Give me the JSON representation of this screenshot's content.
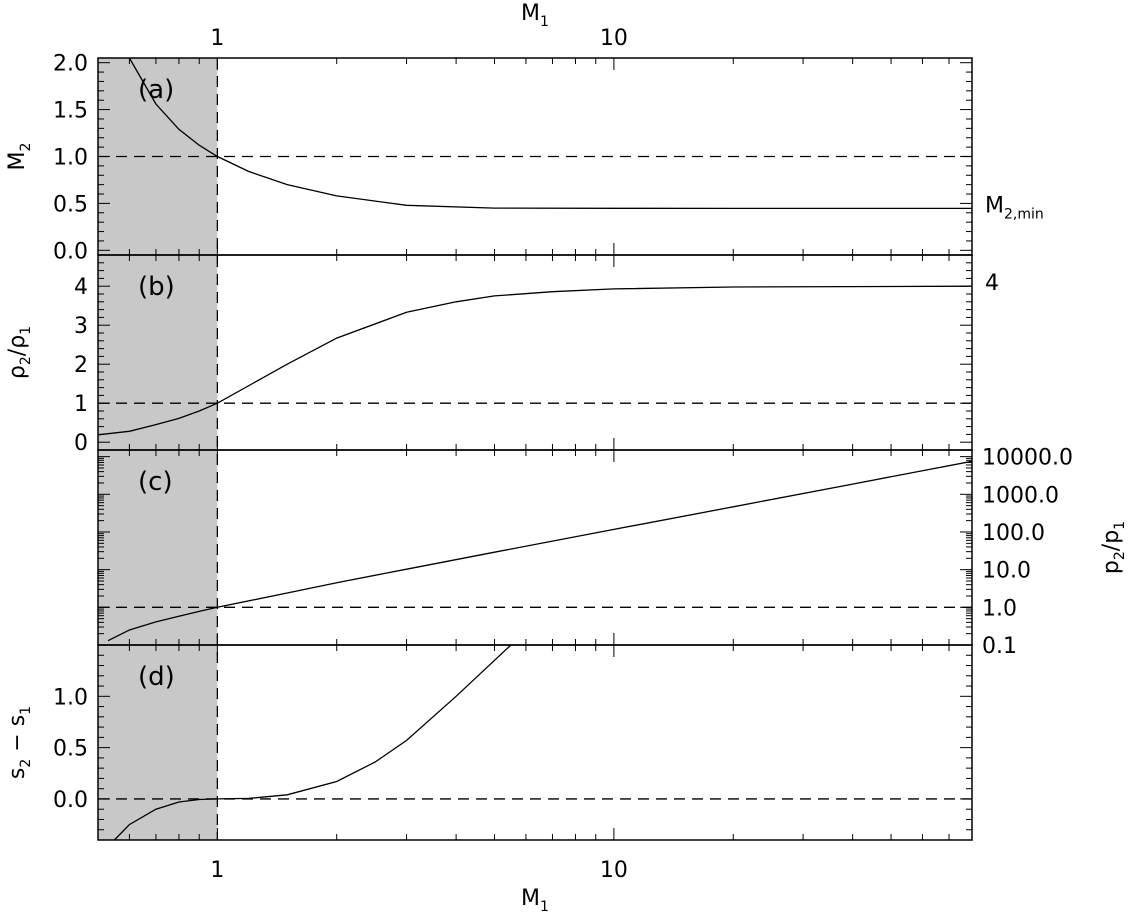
{
  "chart_data": {
    "type": "line",
    "shaded_region": {
      "x_from": 0.5,
      "x_to": 1,
      "color": "#c8c8c8"
    },
    "x_axis": {
      "label_main": "M",
      "label_sub": "1",
      "scale": "log",
      "range": [
        0.5,
        80
      ],
      "tick_labels": [
        "1",
        "10"
      ],
      "tick_values": [
        1,
        10
      ]
    },
    "panels": [
      {
        "tag": "(a)",
        "y_label_main": "M",
        "y_label_sub": "2",
        "y_scale": "linear",
        "y_range": [
          -0.05,
          2.05
        ],
        "y_ticks": [
          0.0,
          0.5,
          1.0,
          1.5,
          2.0
        ],
        "y_tick_labels": [
          "0.0",
          "0.5",
          "1.0",
          "1.5",
          "2.0"
        ],
        "reference_line": 1.0,
        "right_annotation_main": "M",
        "right_annotation_sub": "2,min",
        "series": [
          {
            "x": [
              0.6,
              0.7,
              0.8,
              0.9,
              1.0,
              1.2,
              1.5,
              2,
              3,
              5,
              10,
              20,
              80
            ],
            "y": [
              2.05,
              1.56,
              1.29,
              1.12,
              1.0,
              0.84,
              0.7,
              0.58,
              0.48,
              0.45,
              0.448,
              0.447,
              0.447
            ]
          }
        ]
      },
      {
        "tag": "(b)",
        "y_label_main": "ρ",
        "y_label_sub": "2",
        "y_label_main2": "/ρ",
        "y_label_sub2": "1",
        "y_scale": "linear",
        "y_range": [
          -0.2,
          4.8
        ],
        "y_ticks": [
          0,
          1,
          2,
          3,
          4
        ],
        "y_tick_labels": [
          "0",
          "1",
          "2",
          "3",
          "4"
        ],
        "reference_line": 1,
        "right_annotation_main": "4",
        "series": [
          {
            "x": [
              0.5,
              0.6,
              0.7,
              0.8,
              0.9,
              1.0,
              1.5,
              2,
              3,
              4,
              5,
              7,
              10,
              20,
              80
            ],
            "y": [
              0.19,
              0.28,
              0.45,
              0.61,
              0.8,
              1.0,
              2.0,
              2.67,
              3.33,
              3.6,
              3.75,
              3.86,
              3.93,
              3.98,
              4.0
            ]
          }
        ]
      },
      {
        "tag": "(c)",
        "y_scale": "log",
        "y_range": [
          0.1,
          15000
        ],
        "y_ticks": [
          0.1,
          1,
          10,
          100,
          1000,
          10000
        ],
        "y_tick_labels": [
          "0.1",
          "1.0",
          "10.0",
          "100.0",
          "1000.0",
          "10000.0"
        ],
        "right_axis_label_main": "p",
        "right_axis_label_sub": "2",
        "right_axis_label_main2": "/p",
        "right_axis_label_sub2": "1",
        "reference_line": 1,
        "series": [
          {
            "x": [
              0.53,
              0.6,
              0.7,
              0.8,
              0.9,
              1.0,
              1.5,
              2,
              3,
              5,
              10,
              20,
              40,
              80
            ],
            "y": [
              0.13,
              0.25,
              0.41,
              0.58,
              0.78,
              1.0,
              2.4,
              4.5,
              10.3,
              29,
              117,
              467,
              1867,
              7500
            ]
          }
        ]
      },
      {
        "tag": "(d)",
        "y_label_main": "s",
        "y_label_sub": "2",
        "y_label_mid": " − s",
        "y_label_sub2": "1",
        "y_scale": "linear",
        "y_range": [
          -0.4,
          1.5
        ],
        "y_ticks": [
          0.0,
          0.5,
          1.0
        ],
        "y_tick_labels": [
          "0.0",
          "0.5",
          "1.0"
        ],
        "reference_line": 0.0,
        "series": [
          {
            "x": [
              0.55,
              0.6,
              0.7,
              0.8,
              0.9,
              1.0,
              1.2,
              1.5,
              2,
              2.5,
              3,
              4,
              5.5
            ],
            "y": [
              -0.4,
              -0.25,
              -0.1,
              -0.03,
              -0.005,
              0.0,
              0.005,
              0.04,
              0.17,
              0.36,
              0.57,
              1.0,
              1.5
            ]
          }
        ]
      }
    ]
  }
}
